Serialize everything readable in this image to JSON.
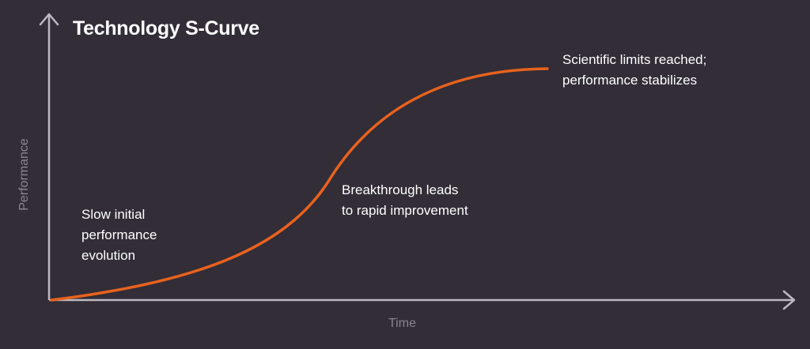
{
  "title": "Technology S-Curve",
  "axes": {
    "x_label": "Time",
    "y_label": "Performance"
  },
  "annotations": {
    "start": [
      "Slow initial",
      "performance",
      "evolution"
    ],
    "middle": [
      "Breakthrough leads",
      "to rapid improvement"
    ],
    "end": [
      "Scientific limits reached;",
      "performance stabilizes"
    ]
  },
  "colors": {
    "background": "#322d37",
    "curve": "#e8621e",
    "axis": "#bdb9c1",
    "text": "#ffffff",
    "axis_label": "#8a858f"
  }
}
